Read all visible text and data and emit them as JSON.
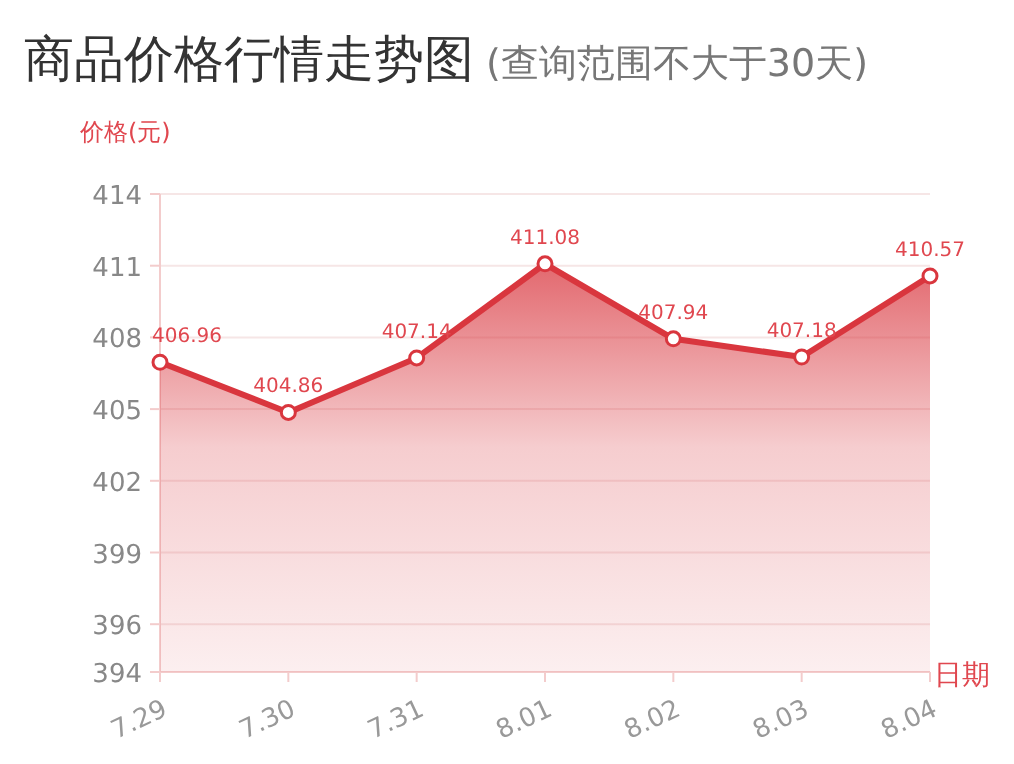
{
  "chart_data": {
    "type": "area",
    "title": "商品价格行情走势图",
    "subtitle": "(查询范围不大于30天)",
    "ylabel": "价格(元)",
    "xlabel": "日期",
    "categories": [
      "7.29",
      "7.30",
      "7.31",
      "8.01",
      "8.02",
      "8.03",
      "8.04"
    ],
    "series": [
      {
        "color": "#d9363e",
        "values": [
          406.96,
          404.86,
          407.14,
          411.08,
          407.94,
          407.18,
          410.57
        ]
      }
    ],
    "ylim": [
      394,
      414
    ],
    "yticks": [
      394,
      396,
      399,
      402,
      405,
      408,
      411,
      414
    ],
    "grid": "y",
    "marker": "circle",
    "data_labels": true
  }
}
